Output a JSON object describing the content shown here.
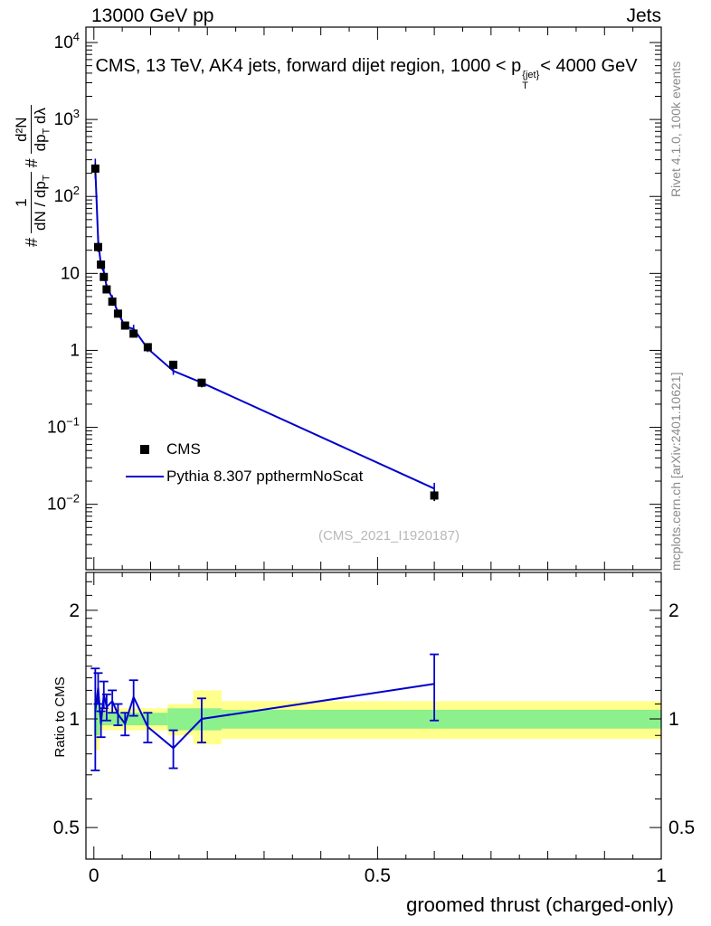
{
  "header": {
    "left": "13000 GeV pp",
    "right": "Jets"
  },
  "title": {
    "prefix": "CMS, 13 TeV, AK4 jets, forward dijet region, 1000 < p",
    "sup": "{jet}",
    "sub": "T",
    "suffix": "< 4000 GeV"
  },
  "ylabel": {
    "hash1": "#",
    "f1_num": "1",
    "f1_den": "dN / dp",
    "f1_den_sub": "T",
    "hash2": "#",
    "f2_num": "d²N",
    "f2_den": "dp",
    "f2_den_sub": "T",
    "f2_den2": " dλ"
  },
  "right_margin": {
    "top": "Rivet 4.1.0, 100k events",
    "bottom": "mcplots.cern.ch [arXiv:2401.10621]"
  },
  "legend": {
    "cms": "CMS",
    "pythia": "Pythia 8.307 ppthermNoScat"
  },
  "watermark": "(CMS_2021_I1920187)",
  "ratio_label": "Ratio to CMS",
  "xlabel": "groomed thrust (charged-only)",
  "colors": {
    "line": "#0000cc",
    "marker": "#000000",
    "band_yellow": "#ffff8c",
    "band_green": "#8cf08c"
  },
  "chart_data": {
    "type": "line",
    "title": "CMS, 13 TeV, AK4 jets, forward dijet region, 1000 < p_T^{jet} < 4000 GeV",
    "xlabel": "groomed thrust (charged-only)",
    "ylabel": "1/(dN/dp_T) d^2N/(dp_T dlambda)",
    "xlim": [
      0,
      1
    ],
    "ylog": true,
    "ylim": [
      0.01,
      10000
    ],
    "x_ticks": [
      0,
      0.5,
      1
    ],
    "y_tick_exponents": [
      4,
      3,
      2,
      1,
      0,
      -1,
      -2
    ],
    "ratio_ticks": [
      2,
      1,
      0.5
    ],
    "ratio_ylim": [
      0.4,
      2.5
    ],
    "x": [
      0.0025,
      0.0075,
      0.0125,
      0.0175,
      0.0225,
      0.0325,
      0.0425,
      0.055,
      0.07,
      0.095,
      0.14,
      0.19,
      0.6
    ],
    "series": [
      {
        "name": "CMS",
        "style": "points",
        "color": "#000000",
        "y": [
          230,
          22,
          13,
          9,
          6.2,
          4.3,
          3.0,
          2.1,
          1.65,
          1.1,
          0.65,
          0.38,
          0.013
        ],
        "yerr": [
          40,
          3,
          1.5,
          1.0,
          0.7,
          0.5,
          0.3,
          0.2,
          0.15,
          0.1,
          0.08,
          0.04,
          0.002
        ]
      },
      {
        "name": "Pythia 8.307 ppthermNoScat",
        "style": "line",
        "color": "#0000cc",
        "y": [
          240,
          27,
          12.6,
          10.5,
          6.7,
          4.8,
          3.1,
          2.04,
          1.9,
          1.05,
          0.54,
          0.38,
          0.016
        ],
        "yerr": [
          70,
          3.5,
          1.1,
          1.1,
          0.6,
          0.4,
          0.25,
          0.15,
          0.25,
          0.1,
          0.06,
          0.05,
          0.003
        ]
      }
    ],
    "ratio": {
      "denominator": "CMS",
      "y": [
        1.05,
        1.22,
        0.97,
        1.17,
        1.08,
        1.12,
        1.03,
        0.97,
        1.15,
        0.95,
        0.83,
        1.0,
        1.25
      ],
      "yerr": [
        0.33,
        0.12,
        0.08,
        0.1,
        0.09,
        0.08,
        0.07,
        0.07,
        0.13,
        0.09,
        0.1,
        0.14,
        0.26
      ],
      "bands": {
        "yellow": [
          {
            "x0": 0.0,
            "x1": 0.01,
            "lo": 0.82,
            "hi": 1.18
          },
          {
            "x0": 0.01,
            "x1": 0.13,
            "lo": 0.93,
            "hi": 1.07
          },
          {
            "x0": 0.13,
            "x1": 0.175,
            "lo": 0.9,
            "hi": 1.1
          },
          {
            "x0": 0.175,
            "x1": 0.225,
            "lo": 0.85,
            "hi": 1.2
          },
          {
            "x0": 0.225,
            "x1": 1.0,
            "lo": 0.88,
            "hi": 1.12
          }
        ],
        "green": [
          {
            "x0": 0.0,
            "x1": 0.01,
            "lo": 0.9,
            "hi": 1.1
          },
          {
            "x0": 0.01,
            "x1": 0.13,
            "lo": 0.96,
            "hi": 1.04
          },
          {
            "x0": 0.13,
            "x1": 0.225,
            "lo": 0.93,
            "hi": 1.07
          },
          {
            "x0": 0.225,
            "x1": 1.0,
            "lo": 0.94,
            "hi": 1.06
          }
        ]
      }
    }
  }
}
